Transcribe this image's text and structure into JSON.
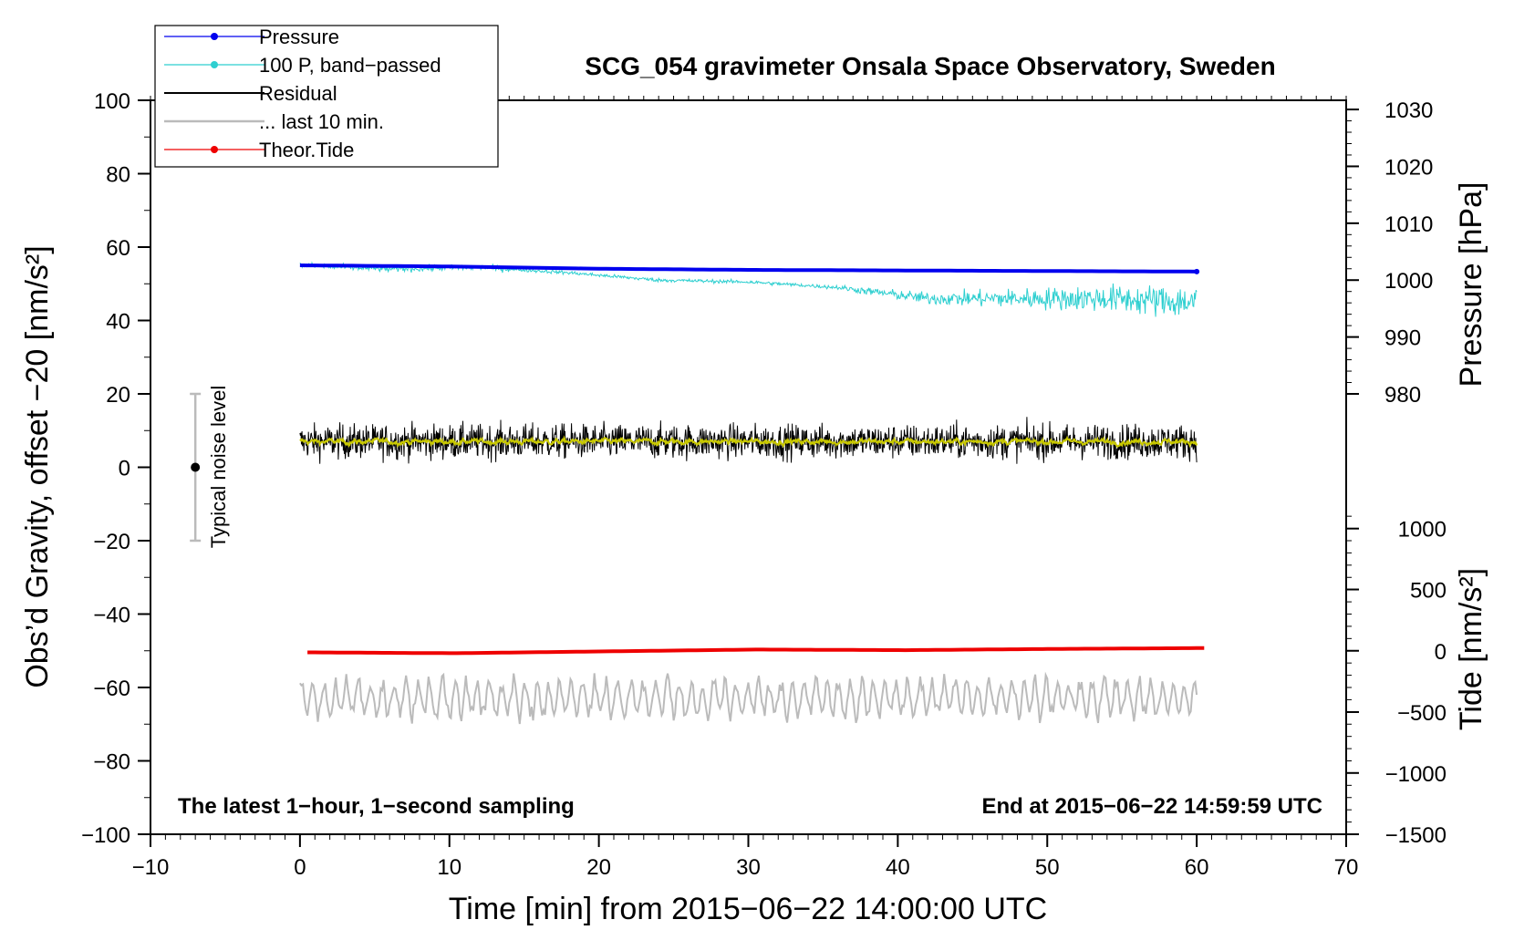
{
  "chart_data": {
    "type": "line",
    "title": "SCG_054 gravimeter Onsala Space Observatory, Sweden",
    "xlabel": "Time [min] from 2015−06−22 14:00:00 UTC",
    "ylabel_left": "Obs’d Gravity, offset −20 [nm/s²]",
    "ylabel_right_pressure": "Pressure [hPa]",
    "ylabel_right_tide": "Tide [nm/s²]",
    "xlim": [
      -10,
      70
    ],
    "ylim_left": [
      -100,
      100
    ],
    "xticks": [
      -10,
      0,
      10,
      20,
      30,
      40,
      50,
      60,
      70
    ],
    "xtick_labels": [
      "−10",
      "0",
      "10",
      "20",
      "30",
      "40",
      "50",
      "60",
      "70"
    ],
    "yticks_left": [
      -100,
      -80,
      -60,
      -40,
      -20,
      0,
      20,
      40,
      60,
      80,
      100
    ],
    "ytick_labels_left": [
      "−100",
      "−80",
      "−60",
      "−40",
      "−20",
      "0",
      "20",
      "40",
      "60",
      "80",
      "100"
    ],
    "pressure_axis": {
      "ticks": [
        980,
        990,
        1000,
        1010,
        1020,
        1030
      ],
      "tick_labels": [
        "980",
        "990",
        "1000",
        "1010",
        "1020",
        "1030"
      ],
      "map_left_values": [
        20,
        35.5,
        51,
        66.5,
        82,
        97.5
      ]
    },
    "tide_axis": {
      "ticks": [
        -1500,
        -1000,
        -500,
        0,
        500,
        1000
      ],
      "tick_labels": [
        "−1500",
        "−1000",
        "−500",
        "0",
        "500",
        "1000"
      ],
      "map_left_values": [
        -100,
        -83.3,
        -66.7,
        -50,
        -33.3,
        -16.7
      ]
    },
    "noise_bar": {
      "x": -7,
      "center": 0,
      "low": -20,
      "high": 20,
      "label": "Typical noise level"
    },
    "annotations": {
      "bottom_left": "The latest 1−hour, 1−second sampling",
      "bottom_right": "End at 2015−06−22 14:59:59 UTC"
    },
    "legend_position": "top-left, outside plot",
    "series": [
      {
        "name": "Pressure",
        "color": "#0000ee",
        "x_range": [
          0,
          60
        ],
        "values_pressure_hpa": [
          1002.6,
          1002.4,
          1002.0,
          1001.8,
          1001.7,
          1001.6,
          1001.5
        ],
        "style": "thick line"
      },
      {
        "name": "100 P, band−passed",
        "color": "#2ecfd0",
        "x_range": [
          0,
          60
        ],
        "trend_left": [
          55,
          54,
          54.5,
          53,
          51,
          50.5,
          49,
          46,
          46,
          46,
          45
        ],
        "noise_growing_from_min": 35
      },
      {
        "name": "Residual",
        "color": "#000000",
        "x_range": [
          0,
          60
        ],
        "mean_left": 7,
        "noise_range_left": [
          -3,
          19
        ]
      },
      {
        "name": "... last 10 min.",
        "color": "#bbbbbb",
        "x_range": [
          0,
          60
        ],
        "mean_left": -63,
        "range_left": [
          -72,
          -53
        ]
      },
      {
        "name": "Theor.Tide",
        "color": "#ee0000",
        "x_range": [
          0.5,
          60.5
        ],
        "values_tide_nms2": [
          -13,
          -20,
          -5,
          10,
          5,
          15,
          22
        ],
        "style": "thick line"
      },
      {
        "name": "",
        "color": "#c8c800",
        "x_range": [
          0,
          60
        ],
        "mean_left": 7,
        "note": "smoothed residual (no legend entry)"
      }
    ]
  },
  "colors": {
    "pressure": "#0000ee",
    "bandpassed": "#2ecfd0",
    "residual": "#000000",
    "last10": "#bbbbbb",
    "tide": "#ee0000",
    "smoothed": "#c8c800"
  }
}
